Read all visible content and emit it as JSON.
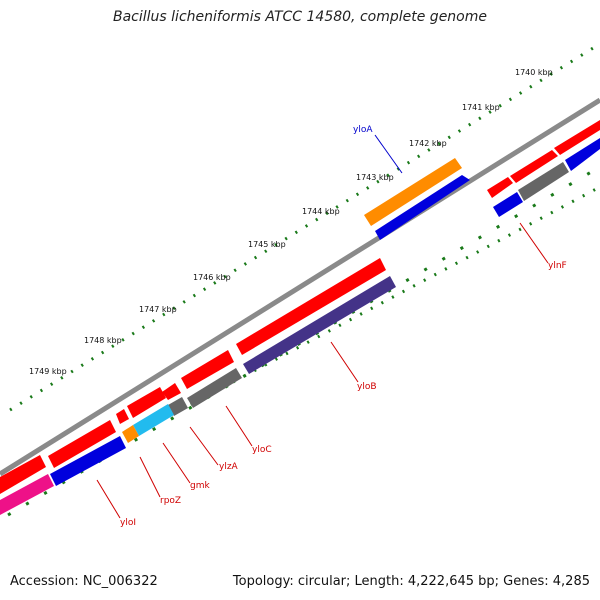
{
  "title": "Bacillus licheniformis ATCC 14580, complete genome",
  "footer": {
    "accession": "Accession: NC_006322",
    "topology": "Topology: circular; Length: 4,222,645 bp; Genes: 4,285"
  },
  "scale_labels": [
    "1740 kbp",
    "1741 kbp",
    "1742 kbp",
    "1743 kbp",
    "1744 kbp",
    "1745 kbp",
    "1746 kbp",
    "1747 kbp",
    "1748 kbp",
    "1749 kbp"
  ],
  "gene_labels": [
    "yloA",
    "ylnF",
    "yloB",
    "yloC",
    "ylzA",
    "gmk",
    "rpoZ",
    "yloI"
  ],
  "colors": {
    "forward_cds": "#ff0000",
    "reverse_cds": "#0000dd",
    "orange": "#ff8c00",
    "gray": "#666666",
    "cyan": "#22bbee",
    "purple": "#443388",
    "magenta": "#ee1188",
    "backbone": "#888888",
    "ticks": "#1a7a1a",
    "label_red": "#d00000",
    "label_blue": "#0000cc"
  }
}
